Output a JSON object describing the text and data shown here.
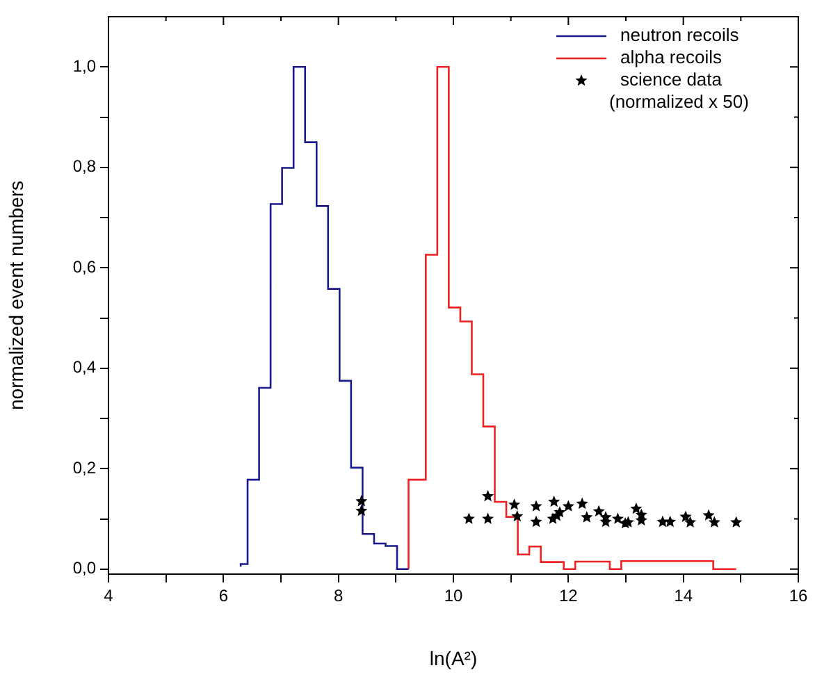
{
  "chart_data": {
    "type": "step",
    "xlabel": "ln(A²)",
    "ylabel": "normalized event numbers",
    "xlim": [
      4,
      16
    ],
    "ylim": [
      -0.01,
      1.1
    ],
    "xticks": [
      4,
      {
        "value": 5,
        "label": null
      },
      6,
      {
        "value": 7,
        "label": null
      },
      8,
      {
        "value": 9,
        "label": null
      },
      10,
      {
        "value": 11,
        "label": null
      },
      12,
      {
        "value": 13,
        "label": null
      },
      14,
      {
        "value": 15,
        "label": null
      },
      16
    ],
    "yticks": [
      {
        "value": 0,
        "label": "0,0"
      },
      {
        "value": 0.1,
        "label": null
      },
      {
        "value": 0.2,
        "label": "0,2"
      },
      {
        "value": 0.3,
        "label": null
      },
      {
        "value": 0.4,
        "label": "0,4"
      },
      {
        "value": 0.5,
        "label": null
      },
      {
        "value": 0.6,
        "label": "0,6"
      },
      {
        "value": 0.7,
        "label": null
      },
      {
        "value": 0.8,
        "label": "0,8"
      },
      {
        "value": 0.9,
        "label": null
      },
      {
        "value": 1.0,
        "label": "1,0"
      }
    ],
    "grid": false,
    "legend": "top right",
    "series": [
      {
        "name": "neutron recoils",
        "color": "#1a1a8c",
        "x": [
          6.3,
          6.42,
          6.62,
          6.82,
          7.02,
          7.22,
          7.42,
          7.62,
          7.82,
          8.02,
          8.22,
          8.42,
          8.62,
          8.82,
          9.02,
          9.22
        ],
        "values": [
          0.005,
          0.01,
          0.178,
          0.361,
          0.727,
          0.799,
          1.0,
          0.85,
          0.723,
          0.558,
          0.375,
          0.202,
          0.07,
          0.051,
          0.046,
          0
        ]
      },
      {
        "name": "alpha recoils",
        "color": "#ee2222",
        "x": [
          9.22,
          9.52,
          9.72,
          9.92,
          10.12,
          10.32,
          10.52,
          10.72,
          10.92,
          11.12,
          11.32,
          11.52,
          11.92,
          12.12,
          12.72,
          12.92,
          14.52,
          14.72,
          14.92
        ],
        "values": [
          0,
          0.178,
          0.626,
          1.0,
          0.521,
          0.493,
          0.388,
          0.284,
          0.134,
          0.104,
          0.029,
          0.045,
          0.014,
          0,
          0.015,
          0,
          0.016,
          0,
          0
        ]
      },
      {
        "name": "science data (normalized x 50)",
        "type": "scatter",
        "marker": "star",
        "color": "#000000",
        "x": [
          8.4,
          8.4,
          10.27,
          10.6,
          10.6,
          11.06,
          11.11,
          11.44,
          11.44,
          11.73,
          11.75,
          11.8,
          11.85,
          12.0,
          12.24,
          12.32,
          12.53,
          12.65,
          12.65,
          12.86,
          12.99,
          13.04,
          13.18,
          13.27,
          13.27,
          13.64,
          13.77,
          14.04,
          14.12,
          14.44,
          14.54,
          14.92
        ],
        "values": [
          0.135,
          0.116,
          0.1,
          0.145,
          0.1,
          0.128,
          0.105,
          0.125,
          0.094,
          0.1,
          0.134,
          0.106,
          0.113,
          0.125,
          0.13,
          0.103,
          0.115,
          0.103,
          0.094,
          0.1,
          0.091,
          0.093,
          0.12,
          0.108,
          0.097,
          0.094,
          0.094,
          0.104,
          0.093,
          0.107,
          0.093,
          0.093
        ]
      }
    ]
  }
}
